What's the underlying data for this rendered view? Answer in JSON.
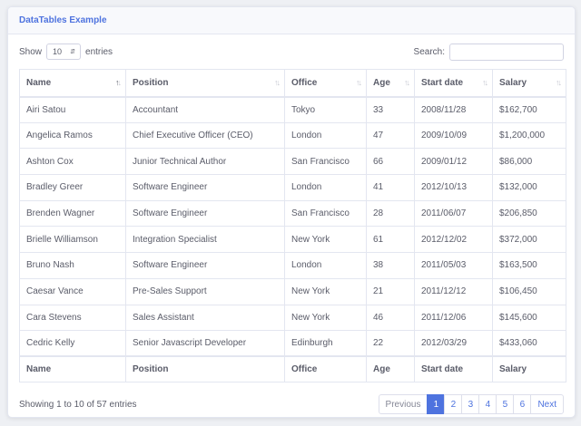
{
  "header": {
    "title": "DataTables Example"
  },
  "length": {
    "prefix": "Show",
    "selected": "10",
    "suffix": "entries"
  },
  "search": {
    "label": "Search:",
    "value": ""
  },
  "columns": [
    "Name",
    "Position",
    "Office",
    "Age",
    "Start date",
    "Salary"
  ],
  "rows": [
    [
      "Airi Satou",
      "Accountant",
      "Tokyo",
      "33",
      "2008/11/28",
      "$162,700"
    ],
    [
      "Angelica Ramos",
      "Chief Executive Officer (CEO)",
      "London",
      "47",
      "2009/10/09",
      "$1,200,000"
    ],
    [
      "Ashton Cox",
      "Junior Technical Author",
      "San Francisco",
      "66",
      "2009/01/12",
      "$86,000"
    ],
    [
      "Bradley Greer",
      "Software Engineer",
      "London",
      "41",
      "2012/10/13",
      "$132,000"
    ],
    [
      "Brenden Wagner",
      "Software Engineer",
      "San Francisco",
      "28",
      "2011/06/07",
      "$206,850"
    ],
    [
      "Brielle Williamson",
      "Integration Specialist",
      "New York",
      "61",
      "2012/12/02",
      "$372,000"
    ],
    [
      "Bruno Nash",
      "Software Engineer",
      "London",
      "38",
      "2011/05/03",
      "$163,500"
    ],
    [
      "Caesar Vance",
      "Pre-Sales Support",
      "New York",
      "21",
      "2011/12/12",
      "$106,450"
    ],
    [
      "Cara Stevens",
      "Sales Assistant",
      "New York",
      "46",
      "2011/12/06",
      "$145,600"
    ],
    [
      "Cedric Kelly",
      "Senior Javascript Developer",
      "Edinburgh",
      "22",
      "2012/03/29",
      "$433,060"
    ]
  ],
  "info": "Showing 1 to 10 of 57 entries",
  "pagination": {
    "previous": "Previous",
    "pages": [
      "1",
      "2",
      "3",
      "4",
      "5",
      "6"
    ],
    "active": "1",
    "next": "Next"
  },
  "colors": {
    "accent": "#4e73df",
    "text": "#5a5c69",
    "border": "#e3e6f0"
  }
}
